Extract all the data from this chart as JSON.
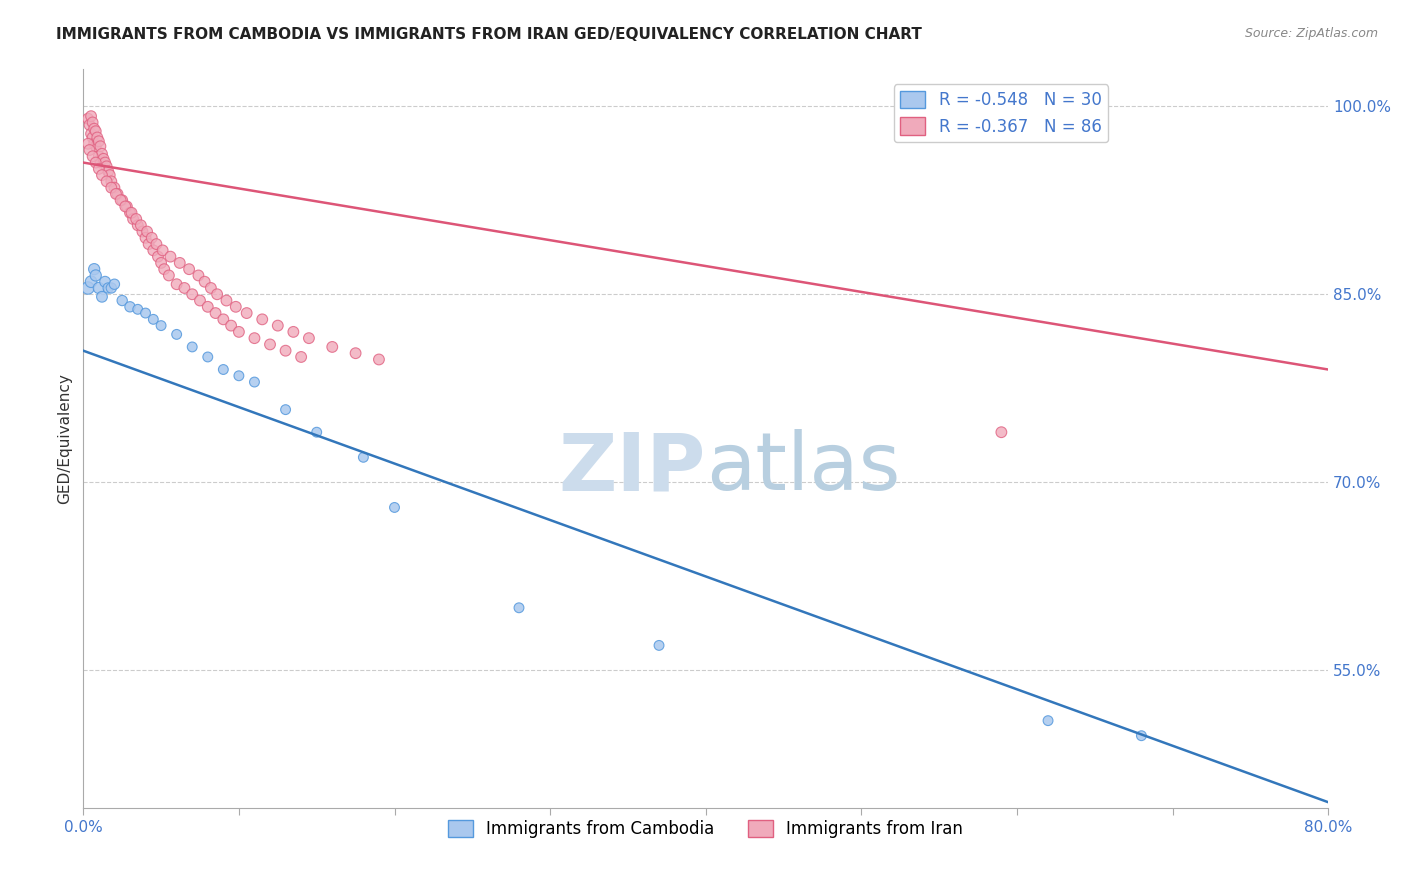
{
  "title": "IMMIGRANTS FROM CAMBODIA VS IMMIGRANTS FROM IRAN GED/EQUIVALENCY CORRELATION CHART",
  "source_text": "Source: ZipAtlas.com",
  "ylabel_left": "GED/Equivalency",
  "xlim": [
    0.0,
    0.8
  ],
  "ylim": [
    0.44,
    1.03
  ],
  "xticks": [
    0.0,
    0.1,
    0.2,
    0.3,
    0.4,
    0.5,
    0.6,
    0.7,
    0.8
  ],
  "xtick_labels": [
    "0.0%",
    "",
    "",
    "",
    "",
    "",
    "",
    "",
    "80.0%"
  ],
  "yticks_right": [
    0.55,
    0.7,
    0.85,
    1.0
  ],
  "ytick_right_labels": [
    "55.0%",
    "70.0%",
    "85.0%",
    "100.0%"
  ],
  "grid_color": "#cccccc",
  "background_color": "#ffffff",
  "cambodia_color": "#aac8ee",
  "cambodia_edge_color": "#5599dd",
  "iran_color": "#f0aabb",
  "iran_edge_color": "#e06080",
  "cambodia_line_color": "#3377bb",
  "iran_line_color": "#dd5577",
  "legend_r_cambodia": "R = -0.548",
  "legend_n_cambodia": "N = 30",
  "legend_r_iran": "R = -0.367",
  "legend_n_iran": "N = 86",
  "label_cambodia": "Immigrants from Cambodia",
  "label_iran": "Immigrants from Iran",
  "title_fontsize": 11,
  "axis_label_fontsize": 11,
  "tick_label_fontsize": 11,
  "legend_fontsize": 12,
  "watermark_color": "#d8e8f5",
  "cambodia_line_x0": 0.0,
  "cambodia_line_y0": 0.805,
  "cambodia_line_x1": 0.8,
  "cambodia_line_y1": 0.445,
  "iran_line_x0": 0.0,
  "iran_line_y0": 0.955,
  "iran_line_x1": 0.8,
  "iran_line_y1": 0.79,
  "cambodia_x": [
    0.003,
    0.005,
    0.007,
    0.008,
    0.01,
    0.012,
    0.014,
    0.016,
    0.018,
    0.02,
    0.025,
    0.03,
    0.035,
    0.04,
    0.045,
    0.05,
    0.06,
    0.07,
    0.08,
    0.09,
    0.1,
    0.11,
    0.13,
    0.15,
    0.18,
    0.2,
    0.28,
    0.37,
    0.62,
    0.68
  ],
  "cambodia_y": [
    0.855,
    0.86,
    0.87,
    0.865,
    0.855,
    0.848,
    0.86,
    0.855,
    0.855,
    0.858,
    0.845,
    0.84,
    0.838,
    0.835,
    0.83,
    0.825,
    0.818,
    0.808,
    0.8,
    0.79,
    0.785,
    0.78,
    0.758,
    0.74,
    0.72,
    0.68,
    0.6,
    0.57,
    0.51,
    0.498
  ],
  "cambodia_sizes": [
    80,
    70,
    65,
    65,
    65,
    60,
    60,
    55,
    55,
    55,
    55,
    55,
    50,
    50,
    50,
    50,
    50,
    50,
    50,
    50,
    50,
    50,
    50,
    50,
    50,
    50,
    50,
    50,
    50,
    50
  ],
  "iran_x": [
    0.003,
    0.004,
    0.005,
    0.005,
    0.006,
    0.006,
    0.007,
    0.007,
    0.008,
    0.008,
    0.009,
    0.01,
    0.01,
    0.011,
    0.011,
    0.012,
    0.013,
    0.014,
    0.015,
    0.016,
    0.017,
    0.018,
    0.02,
    0.022,
    0.025,
    0.028,
    0.03,
    0.032,
    0.035,
    0.038,
    0.04,
    0.042,
    0.045,
    0.048,
    0.05,
    0.052,
    0.055,
    0.06,
    0.065,
    0.07,
    0.075,
    0.08,
    0.085,
    0.09,
    0.095,
    0.1,
    0.11,
    0.12,
    0.13,
    0.14,
    0.003,
    0.004,
    0.006,
    0.008,
    0.01,
    0.012,
    0.015,
    0.018,
    0.021,
    0.024,
    0.027,
    0.031,
    0.034,
    0.037,
    0.041,
    0.044,
    0.047,
    0.051,
    0.056,
    0.062,
    0.068,
    0.074,
    0.078,
    0.082,
    0.086,
    0.092,
    0.098,
    0.105,
    0.115,
    0.125,
    0.135,
    0.145,
    0.16,
    0.175,
    0.19,
    0.59
  ],
  "iran_y": [
    0.99,
    0.985,
    0.992,
    0.978,
    0.987,
    0.975,
    0.982,
    0.97,
    0.98,
    0.968,
    0.975,
    0.972,
    0.96,
    0.968,
    0.955,
    0.962,
    0.958,
    0.955,
    0.952,
    0.948,
    0.945,
    0.94,
    0.935,
    0.93,
    0.925,
    0.92,
    0.915,
    0.91,
    0.905,
    0.9,
    0.895,
    0.89,
    0.885,
    0.88,
    0.875,
    0.87,
    0.865,
    0.858,
    0.855,
    0.85,
    0.845,
    0.84,
    0.835,
    0.83,
    0.825,
    0.82,
    0.815,
    0.81,
    0.805,
    0.8,
    0.97,
    0.965,
    0.96,
    0.955,
    0.95,
    0.945,
    0.94,
    0.935,
    0.93,
    0.925,
    0.92,
    0.915,
    0.91,
    0.905,
    0.9,
    0.895,
    0.89,
    0.885,
    0.88,
    0.875,
    0.87,
    0.865,
    0.86,
    0.855,
    0.85,
    0.845,
    0.84,
    0.835,
    0.83,
    0.825,
    0.82,
    0.815,
    0.808,
    0.803,
    0.798,
    0.74
  ],
  "iran_sizes": [
    60,
    60,
    60,
    60,
    60,
    60,
    60,
    60,
    60,
    60,
    60,
    60,
    60,
    60,
    60,
    60,
    60,
    60,
    60,
    60,
    60,
    60,
    60,
    60,
    60,
    60,
    60,
    60,
    60,
    60,
    60,
    60,
    60,
    60,
    60,
    60,
    60,
    60,
    60,
    60,
    60,
    60,
    60,
    60,
    60,
    60,
    60,
    60,
    60,
    60,
    60,
    60,
    60,
    60,
    60,
    60,
    60,
    60,
    60,
    60,
    60,
    60,
    60,
    60,
    60,
    60,
    60,
    60,
    60,
    60,
    60,
    60,
    60,
    60,
    60,
    60,
    60,
    60,
    60,
    60,
    60,
    60,
    60,
    60,
    60,
    60
  ]
}
